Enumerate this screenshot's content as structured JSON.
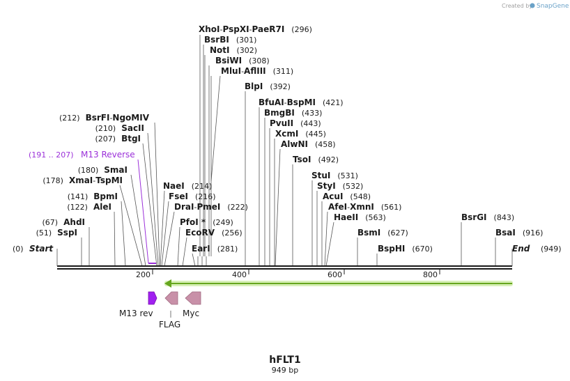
{
  "map": {
    "name": "hFLT1",
    "length_label": "949 bp",
    "start_label": "Start",
    "end_label": "End",
    "start_pos": "(0)",
    "end_pos": "(949)",
    "ticks": [
      "200",
      "400",
      "600",
      "800"
    ]
  },
  "watermark": {
    "created_by": "Created by",
    "brand": "SnapGene"
  },
  "sites": [
    {
      "id": "xhoi",
      "enzymes": [
        "XhoI",
        "PspXI",
        "PaeR7I"
      ],
      "pos": "(296)"
    },
    {
      "id": "bsrbi",
      "enzymes": [
        "BsrBI"
      ],
      "pos": "(301)"
    },
    {
      "id": "noti",
      "enzymes": [
        "NotI"
      ],
      "pos": "(302)"
    },
    {
      "id": "bsiwi",
      "enzymes": [
        "BsiWI"
      ],
      "pos": "(308)"
    },
    {
      "id": "mlui",
      "enzymes": [
        "MluI",
        "AflIII"
      ],
      "pos": "(311)"
    },
    {
      "id": "blpi",
      "enzymes": [
        "BlpI"
      ],
      "pos": "(392)"
    },
    {
      "id": "bfuai",
      "enzymes": [
        "BfuAI",
        "BspMI"
      ],
      "pos": "(421)"
    },
    {
      "id": "bmgbi",
      "enzymes": [
        "BmgBI"
      ],
      "pos": "(433)"
    },
    {
      "id": "pvuii",
      "enzymes": [
        "PvuII"
      ],
      "pos": "(443)"
    },
    {
      "id": "xcmi",
      "enzymes": [
        "XcmI"
      ],
      "pos": "(445)"
    },
    {
      "id": "alwni",
      "enzymes": [
        "AlwNI"
      ],
      "pos": "(458)"
    },
    {
      "id": "tsoi",
      "enzymes": [
        "TsoI"
      ],
      "pos": "(492)"
    },
    {
      "id": "stui",
      "enzymes": [
        "StuI"
      ],
      "pos": "(531)"
    },
    {
      "id": "styi",
      "enzymes": [
        "StyI"
      ],
      "pos": "(532)"
    },
    {
      "id": "acui",
      "enzymes": [
        "AcuI"
      ],
      "pos": "(548)"
    },
    {
      "id": "afei",
      "enzymes": [
        "AfeI",
        "XmnI"
      ],
      "pos": "(561)"
    },
    {
      "id": "haeii",
      "enzymes": [
        "HaeII"
      ],
      "pos": "(563)"
    },
    {
      "id": "bsmi",
      "enzymes": [
        "BsmI"
      ],
      "pos": "(627)"
    },
    {
      "id": "bsphi",
      "enzymes": [
        "BspHI"
      ],
      "pos": "(670)"
    },
    {
      "id": "bsrgi",
      "enzymes": [
        "BsrGI"
      ],
      "pos": "(843)"
    },
    {
      "id": "bsai",
      "enzymes": [
        "BsaI"
      ],
      "pos": "(916)"
    },
    {
      "id": "bsrfi",
      "enzymes": [
        "BsrFI",
        "NgoMIV"
      ],
      "pos": "(212)"
    },
    {
      "id": "sacii",
      "enzymes": [
        "SacII"
      ],
      "pos": "(210)"
    },
    {
      "id": "btgi",
      "enzymes": [
        "BtgI"
      ],
      "pos": "(207)"
    },
    {
      "id": "smai",
      "enzymes": [
        "SmaI"
      ],
      "pos": "(180)"
    },
    {
      "id": "xmai",
      "enzymes": [
        "XmaI",
        "TspMI"
      ],
      "pos": "(178)"
    },
    {
      "id": "bpmi",
      "enzymes": [
        "BpmI"
      ],
      "pos": "(141)"
    },
    {
      "id": "alei",
      "enzymes": [
        "AleI"
      ],
      "pos": "(122)"
    },
    {
      "id": "ahdi",
      "enzymes": [
        "AhdI"
      ],
      "pos": "(67)"
    },
    {
      "id": "sspi",
      "enzymes": [
        "SspI"
      ],
      "pos": "(51)"
    },
    {
      "id": "naei",
      "enzymes": [
        "NaeI"
      ],
      "pos": "(214)"
    },
    {
      "id": "fsei",
      "enzymes": [
        "FseI"
      ],
      "pos": "(216)"
    },
    {
      "id": "drai",
      "enzymes": [
        "DraI",
        "PmeI"
      ],
      "pos": "(222)"
    },
    {
      "id": "pfoi",
      "enzymes": [
        "PfoI *"
      ],
      "pos": "(249)"
    },
    {
      "id": "ecorv",
      "enzymes": [
        "EcoRV"
      ],
      "pos": "(256)"
    },
    {
      "id": "eari",
      "enzymes": [
        "EarI"
      ],
      "pos": "(281)"
    }
  ],
  "primer": {
    "label": "M13 Reverse",
    "pos": "(191 .. 207)"
  },
  "features": [
    {
      "id": "m13rev",
      "label": "M13 rev",
      "color": "#a020f0"
    },
    {
      "id": "flag",
      "label": "FLAG",
      "color": "#c890a8"
    },
    {
      "id": "myc",
      "label": "Myc",
      "color": "#c890a8"
    }
  ],
  "colors": {
    "orf_arrow": "#66a61e",
    "orf_glow": "#d8f0b8",
    "primer": "#9b30d9",
    "feature_tag": "#c890a8"
  }
}
